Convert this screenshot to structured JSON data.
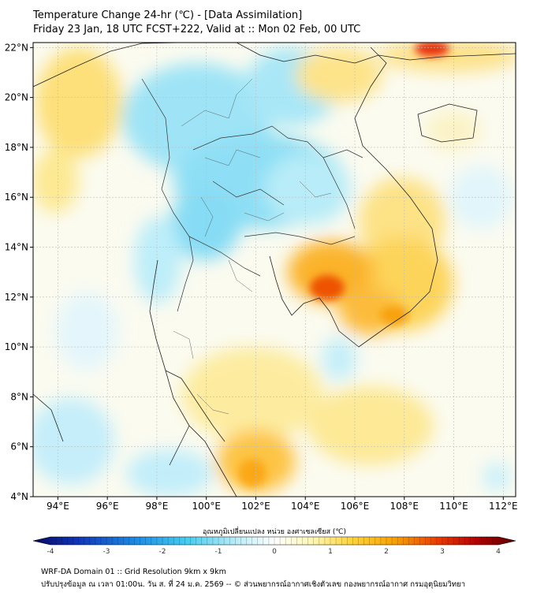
{
  "title": {
    "line1": "Temperature Change 24-hr (℃) - [Data Assimilation]",
    "line2": "Friday 23 Jan, 18 UTC FCST+222, Valid at :: Mon 02 Feb, 00 UTC"
  },
  "map": {
    "lon_range": [
      93,
      112.5
    ],
    "lat_range": [
      4,
      22.2
    ],
    "lat_ticks": [
      "22°N",
      "20°N",
      "18°N",
      "16°N",
      "14°N",
      "12°N",
      "10°N",
      "8°N",
      "6°N",
      "4°N"
    ],
    "lon_ticks": [
      "94°E",
      "96°E",
      "98°E",
      "100°E",
      "102°E",
      "104°E",
      "106°E",
      "108°E",
      "110°E",
      "112°E"
    ],
    "grid": true,
    "field": "24-hr temperature change",
    "colors": {
      "strong_warm": "#e61a00",
      "warm": "#f7a800",
      "mild_warm": "#fde98b",
      "neutral": "#ffffff",
      "mild_cool": "#cdeffa",
      "cool": "#7cdcf3",
      "strong_cool": "#2bb9e8"
    }
  },
  "colorbar": {
    "title": "อุณหภูมิเปลี่ยนแปลง หน่วย องศาเซลเซียส (℃)",
    "ticks": [
      "-4",
      "-3",
      "-2",
      "-1",
      "0",
      "1",
      "2",
      "3",
      "4"
    ],
    "range": [
      -4,
      4
    ],
    "colors": [
      "#08085e",
      "#1033b8",
      "#1e90e6",
      "#46cdf0",
      "#b9ecf8",
      "#ffffff",
      "#fff6b0",
      "#ffd43a",
      "#f7a000",
      "#ea3a00",
      "#b40000",
      "#5a0000"
    ]
  },
  "footer": {
    "line1": "WRF-DA Domain 01 :: Grid Resolution 9km x 9km",
    "line2": "ปรับปรุงข้อมูล ณ เวลา 01:00น. วัน ส. ที่ 24 ม.ค. 2569 -- © ส่วนพยากรณ์อากาศเชิงตัวเลข กองพยากรณ์อากาศ กรมอุตุนิยมวิทยา"
  }
}
